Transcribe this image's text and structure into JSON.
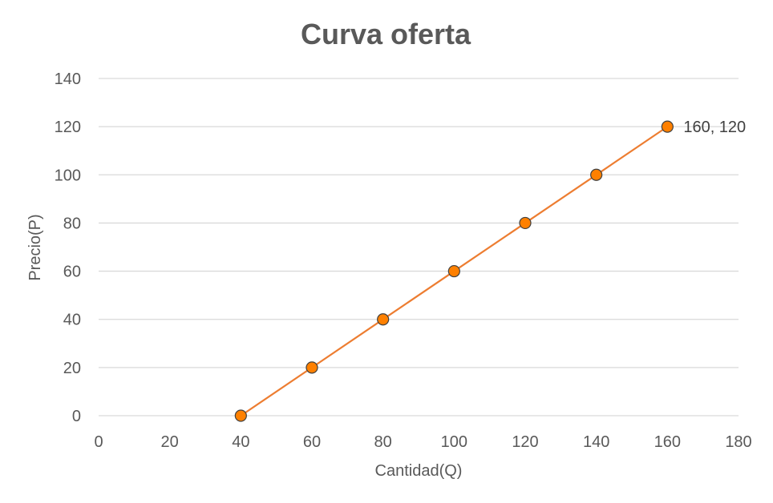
{
  "chart_data": {
    "type": "scatter",
    "title": "Curva oferta",
    "xlabel": "Cantidad(Q)",
    "ylabel": "Precio(P)",
    "xlim": [
      0,
      180
    ],
    "ylim": [
      0,
      140
    ],
    "xticks": [
      0,
      20,
      40,
      60,
      80,
      100,
      120,
      140,
      160,
      180
    ],
    "yticks": [
      0,
      20,
      40,
      60,
      80,
      100,
      120,
      140
    ],
    "grid": "horizontal",
    "series": [
      {
        "x": [
          40,
          60,
          80,
          100,
          120,
          140,
          160
        ],
        "y": [
          0,
          20,
          40,
          60,
          80,
          100,
          120
        ],
        "line_color": "#ED7D31",
        "marker_color": "#FF8000",
        "marker_edge": "#404040"
      }
    ],
    "annotations": [
      {
        "x": 160,
        "y": 120,
        "text": "160, 120"
      }
    ]
  }
}
